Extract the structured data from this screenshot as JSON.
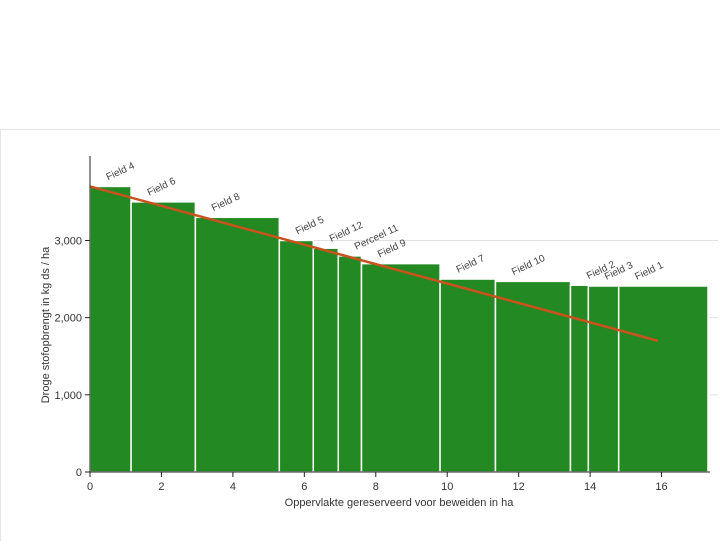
{
  "chart_data": {
    "type": "bar",
    "subtype": "variable-width",
    "xlabel": "Oppervlakte gereserveerd voor beweiden in ha",
    "ylabel": "Droge stofopbrengt in kg ds / ha",
    "xlim": [
      0,
      17.3
    ],
    "ylim": [
      0,
      3900
    ],
    "xticks": [
      0,
      2,
      4,
      6,
      8,
      10,
      12,
      14,
      16
    ],
    "yticks": [
      0,
      1000,
      2000,
      3000
    ],
    "ytick_labels": [
      "0",
      "1,000",
      "2,000",
      "3,000"
    ],
    "grid": "horizontal",
    "bars": [
      {
        "label": "Field 4",
        "x_start": 0.0,
        "x_end": 1.15,
        "value": 3700
      },
      {
        "label": "Field 6",
        "x_start": 1.15,
        "x_end": 2.95,
        "value": 3500
      },
      {
        "label": "Field 8",
        "x_start": 2.95,
        "x_end": 5.3,
        "value": 3300
      },
      {
        "label": "Field 5",
        "x_start": 5.3,
        "x_end": 6.25,
        "value": 3000
      },
      {
        "label": "Field 12",
        "x_start": 6.25,
        "x_end": 6.95,
        "value": 2900
      },
      {
        "label": "Perceel 11",
        "x_start": 6.95,
        "x_end": 7.6,
        "value": 2800
      },
      {
        "label": "Field 9",
        "x_start": 7.6,
        "x_end": 9.8,
        "value": 2700
      },
      {
        "label": "Field 7",
        "x_start": 9.8,
        "x_end": 11.35,
        "value": 2500
      },
      {
        "label": "Field 10",
        "x_start": 11.35,
        "x_end": 13.45,
        "value": 2470
      },
      {
        "label": "Field 2",
        "x_start": 13.45,
        "x_end": 13.95,
        "value": 2420
      },
      {
        "label": "Field 3",
        "x_start": 13.95,
        "x_end": 14.8,
        "value": 2410
      },
      {
        "label": "Field 1",
        "x_start": 14.8,
        "x_end": 17.3,
        "value": 2410
      }
    ],
    "trend_line": {
      "x": [
        0,
        15.9
      ],
      "y": [
        3700,
        1700
      ]
    },
    "colors": {
      "bar": "#238a23",
      "bar_edge": "#ffffff",
      "trend": "#c8531e",
      "grid": "#e0e0e0",
      "axis": "#222222"
    }
  }
}
